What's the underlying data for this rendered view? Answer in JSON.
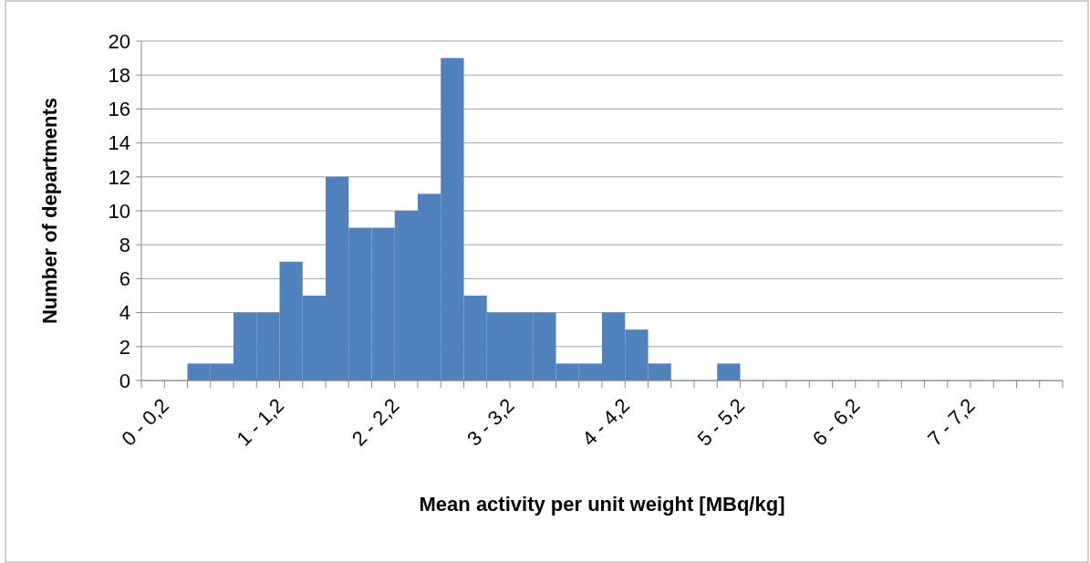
{
  "chart_data": {
    "type": "bar",
    "xlabel": "Mean activity per unit weight [MBq/kg]",
    "ylabel": "Number of departments",
    "categories": [
      "0 - 0,2",
      null,
      null,
      null,
      null,
      "1 - 1,2",
      null,
      null,
      null,
      null,
      "2 - 2,2",
      null,
      null,
      null,
      null,
      "3 - 3,2",
      null,
      null,
      null,
      null,
      "4 - 4,2",
      null,
      null,
      null,
      null,
      "5 - 5,2",
      null,
      null,
      null,
      null,
      "6 - 6,2",
      null,
      null,
      null,
      null,
      "7 - 7,2",
      null,
      null,
      null,
      null
    ],
    "values": [
      0,
      0,
      1,
      1,
      4,
      4,
      7,
      5,
      12,
      9,
      9,
      10,
      11,
      19,
      5,
      4,
      4,
      4,
      1,
      1,
      4,
      3,
      1,
      0,
      0,
      1,
      0,
      0,
      0,
      0,
      0,
      0,
      0,
      0,
      0,
      0,
      0,
      0,
      0,
      0
    ],
    "color": "#4f81bd",
    "ylim": [
      0,
      20
    ],
    "yticks": [
      0,
      2,
      4,
      6,
      8,
      10,
      12,
      14,
      16,
      18,
      20
    ],
    "grid": "y"
  }
}
